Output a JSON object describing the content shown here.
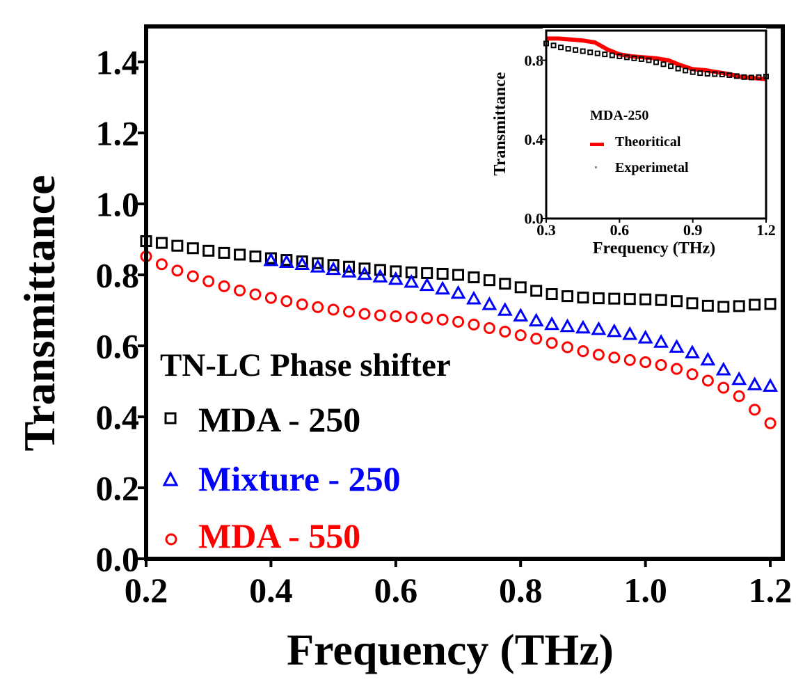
{
  "chart_data": [
    {
      "type": "scatter",
      "role": "main",
      "xlabel": "Frequency (THz)",
      "ylabel": "Transmittance",
      "xlim": [
        0.2,
        1.22
      ],
      "ylim": [
        0.0,
        1.5
      ],
      "xticks": [
        0.2,
        0.4,
        0.6,
        0.8,
        1.0,
        1.2
      ],
      "xtick_labels": [
        "0.2",
        "0.4",
        "0.6",
        "0.8",
        "1.0",
        "1.2"
      ],
      "yticks": [
        0.0,
        0.2,
        0.4,
        0.6,
        0.8,
        1.0,
        1.2,
        1.4
      ],
      "ytick_labels": [
        "0.0",
        "0.2",
        "0.4",
        "0.6",
        "0.8",
        "1.0",
        "1.2",
        "1.4"
      ],
      "legend_title": "TN-LC Phase shifter",
      "legend_position": "bottom-left",
      "series": [
        {
          "name": "MDA - 250",
          "marker": "square",
          "color": "#000000",
          "x": [
            0.2,
            0.225,
            0.25,
            0.275,
            0.3,
            0.325,
            0.35,
            0.375,
            0.4,
            0.425,
            0.45,
            0.475,
            0.5,
            0.525,
            0.55,
            0.575,
            0.6,
            0.625,
            0.65,
            0.675,
            0.7,
            0.725,
            0.75,
            0.775,
            0.8,
            0.825,
            0.85,
            0.875,
            0.9,
            0.925,
            0.95,
            0.975,
            1.0,
            1.025,
            1.05,
            1.075,
            1.1,
            1.125,
            1.15,
            1.175,
            1.2
          ],
          "y": [
            0.895,
            0.89,
            0.882,
            0.875,
            0.868,
            0.862,
            0.857,
            0.852,
            0.847,
            0.842,
            0.838,
            0.833,
            0.828,
            0.823,
            0.818,
            0.814,
            0.81,
            0.807,
            0.805,
            0.803,
            0.8,
            0.793,
            0.785,
            0.775,
            0.765,
            0.755,
            0.746,
            0.74,
            0.736,
            0.734,
            0.733,
            0.732,
            0.731,
            0.729,
            0.726,
            0.72,
            0.713,
            0.71,
            0.712,
            0.716,
            0.718
          ]
        },
        {
          "name": "Mixture - 250",
          "marker": "triangle",
          "color": "#0000ff",
          "x": [
            0.4,
            0.425,
            0.45,
            0.475,
            0.5,
            0.525,
            0.55,
            0.575,
            0.6,
            0.625,
            0.65,
            0.675,
            0.7,
            0.725,
            0.75,
            0.775,
            0.8,
            0.825,
            0.85,
            0.875,
            0.9,
            0.925,
            0.95,
            0.975,
            1.0,
            1.025,
            1.05,
            1.075,
            1.1,
            1.125,
            1.15,
            1.175,
            1.2
          ],
          "y": [
            0.84,
            0.835,
            0.829,
            0.822,
            0.815,
            0.808,
            0.801,
            0.794,
            0.787,
            0.779,
            0.77,
            0.76,
            0.748,
            0.732,
            0.716,
            0.7,
            0.684,
            0.67,
            0.66,
            0.654,
            0.65,
            0.646,
            0.64,
            0.632,
            0.622,
            0.61,
            0.596,
            0.58,
            0.56,
            0.532,
            0.505,
            0.49,
            0.486
          ]
        },
        {
          "name": "MDA - 550",
          "marker": "circle",
          "color": "#ff0000",
          "x": [
            0.2,
            0.225,
            0.25,
            0.275,
            0.3,
            0.325,
            0.35,
            0.375,
            0.4,
            0.425,
            0.45,
            0.475,
            0.5,
            0.525,
            0.55,
            0.575,
            0.6,
            0.625,
            0.65,
            0.675,
            0.7,
            0.725,
            0.75,
            0.775,
            0.8,
            0.825,
            0.85,
            0.875,
            0.9,
            0.925,
            0.95,
            0.975,
            1.0,
            1.025,
            1.05,
            1.075,
            1.1,
            1.125,
            1.15,
            1.175,
            1.2
          ],
          "y": [
            0.852,
            0.83,
            0.812,
            0.796,
            0.782,
            0.768,
            0.756,
            0.745,
            0.735,
            0.726,
            0.717,
            0.709,
            0.702,
            0.696,
            0.69,
            0.686,
            0.683,
            0.681,
            0.678,
            0.674,
            0.668,
            0.66,
            0.65,
            0.64,
            0.63,
            0.62,
            0.608,
            0.596,
            0.585,
            0.575,
            0.567,
            0.56,
            0.554,
            0.546,
            0.535,
            0.52,
            0.502,
            0.482,
            0.458,
            0.42,
            0.382
          ]
        }
      ]
    },
    {
      "type": "line",
      "role": "inset",
      "xlabel": "Frequency (THz)",
      "ylabel": "Transmittance",
      "xlim": [
        0.3,
        1.2
      ],
      "ylim": [
        0.0,
        0.95
      ],
      "xticks": [
        0.3,
        0.6,
        0.9,
        1.2
      ],
      "xtick_labels": [
        "0.3",
        "0.6",
        "0.9",
        "1.2"
      ],
      "yticks": [
        0.0,
        0.4,
        0.8
      ],
      "ytick_labels": [
        "0.0",
        "0.4",
        "0.8"
      ],
      "legend_title": "MDA-250",
      "legend_position": "center",
      "series": [
        {
          "name": "Theoritical",
          "style": "thick-line",
          "color": "#ff0000",
          "x": [
            0.3,
            0.35,
            0.4,
            0.45,
            0.5,
            0.55,
            0.6,
            0.65,
            0.7,
            0.75,
            0.8,
            0.85,
            0.9,
            0.95,
            1.0,
            1.05,
            1.1,
            1.15,
            1.2
          ],
          "y": [
            0.91,
            0.91,
            0.905,
            0.9,
            0.89,
            0.855,
            0.83,
            0.82,
            0.815,
            0.81,
            0.8,
            0.775,
            0.755,
            0.75,
            0.74,
            0.73,
            0.715,
            0.71,
            0.705
          ]
        },
        {
          "name": "Experimetal",
          "style": "square-markers",
          "color": "#000000",
          "x": [
            0.3,
            0.33,
            0.36,
            0.39,
            0.42,
            0.45,
            0.48,
            0.51,
            0.54,
            0.57,
            0.6,
            0.63,
            0.66,
            0.69,
            0.72,
            0.75,
            0.78,
            0.81,
            0.84,
            0.87,
            0.9,
            0.93,
            0.96,
            0.99,
            1.02,
            1.05,
            1.08,
            1.11,
            1.14,
            1.17,
            1.2
          ],
          "y": [
            0.885,
            0.875,
            0.865,
            0.858,
            0.852,
            0.846,
            0.84,
            0.835,
            0.83,
            0.825,
            0.82,
            0.815,
            0.81,
            0.806,
            0.8,
            0.79,
            0.78,
            0.77,
            0.758,
            0.748,
            0.74,
            0.735,
            0.732,
            0.73,
            0.728,
            0.725,
            0.72,
            0.715,
            0.713,
            0.715,
            0.718
          ]
        }
      ]
    }
  ]
}
